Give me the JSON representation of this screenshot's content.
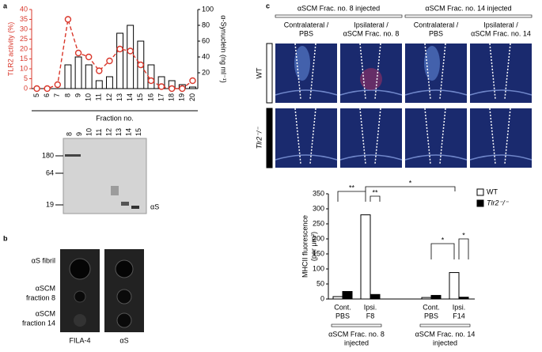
{
  "panel_labels": [
    "a",
    "b",
    "c"
  ],
  "chart_data": [
    {
      "type": "combo",
      "categories": [
        "5",
        "6",
        "7",
        "8",
        "9",
        "10",
        "11",
        "12",
        "13",
        "14",
        "15",
        "16",
        "17",
        "18",
        "19",
        "20"
      ],
      "ylabel": "TLR2 activity (%)",
      "y2label": "α-Synuclein (ng ml⁻¹)",
      "xlabel": "Fraction no.",
      "ylim": [
        0,
        40
      ],
      "yticks": [
        0,
        5,
        10,
        15,
        20,
        25,
        30,
        35,
        40
      ],
      "y2lim": [
        0,
        100
      ],
      "y2ticks": [
        20,
        40,
        60,
        80,
        100
      ],
      "series": [
        {
          "kind": "bar",
          "axis": "y2",
          "color": "#ffffff",
          "values": [
            0,
            0,
            0,
            30,
            40,
            30,
            10,
            15,
            70,
            80,
            60,
            30,
            15,
            10,
            5,
            2
          ]
        },
        {
          "kind": "line",
          "axis": "y",
          "color": "#d9372b",
          "values": [
            0,
            0,
            2,
            35,
            18,
            16,
            9,
            14,
            20,
            19,
            12,
            4,
            1,
            0,
            0,
            4
          ]
        }
      ]
    },
    {
      "type": "bar",
      "ylabel": [
        "MHCII fluorescence",
        "(per μm²)"
      ],
      "categories": [
        [
          "Cont.",
          "PBS"
        ],
        [
          "Ipsi.",
          "F8"
        ],
        [
          "Cont.",
          "PBS"
        ],
        [
          "Ipsi.",
          "F14"
        ]
      ],
      "groups": [
        [
          "αSCM Frac. no. 8",
          "injected"
        ],
        [
          "αSCM Frac. no. 14",
          "injected"
        ]
      ],
      "ylim": [
        0,
        350
      ],
      "yticks": [
        0,
        50,
        100,
        150,
        200,
        250,
        300,
        350
      ],
      "series": [
        {
          "name": "WT",
          "color": "#ffffff",
          "values": [
            8,
            280,
            5,
            88
          ]
        },
        {
          "name": "Tlr2⁻/⁻",
          "color": "#000000",
          "values": [
            25,
            15,
            12,
            6
          ]
        }
      ],
      "legend": "upper right",
      "annotations": [
        "**",
        "**",
        "*",
        "*",
        "*"
      ]
    }
  ],
  "blot": {
    "lanes": [
      "8",
      "9",
      "10",
      "11",
      "12",
      "13",
      "14",
      "15"
    ],
    "markers": [
      "180",
      "64",
      "19"
    ],
    "band_label": "αS"
  },
  "dot_blot": {
    "rows": [
      [
        "αS fibril"
      ],
      [
        "αSCM",
        "fraction 8"
      ],
      [
        "αSCM",
        "fraction 14"
      ]
    ],
    "columns": [
      "FILA-4",
      "αS"
    ]
  },
  "micrographs": {
    "headers": [
      "αSCM Frac. no. 8 injected",
      "αSCM Frac. no. 14 injected"
    ],
    "columns": [
      [
        "Contralateral /",
        "PBS"
      ],
      [
        "Ipsilateral /",
        "αSCM Frac. no. 8"
      ],
      [
        "Contralateral /",
        "PBS"
      ],
      [
        "Ipsilateral /",
        "αSCM Frac. no. 14"
      ]
    ],
    "rows": [
      "WT",
      "Tlr2⁻/⁻"
    ]
  }
}
